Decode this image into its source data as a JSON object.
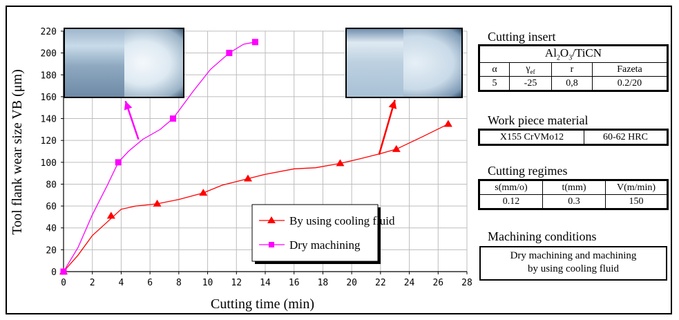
{
  "chart_data": {
    "type": "line",
    "xlabel": "Cutting time (min)",
    "ylabel": "Tool flank wear size VB (μm)",
    "xlim": [
      0,
      28
    ],
    "ylim": [
      0,
      220
    ],
    "x_ticks": [
      0,
      2,
      4,
      6,
      8,
      10,
      12,
      14,
      16,
      18,
      20,
      22,
      24,
      26,
      28
    ],
    "y_ticks": [
      0,
      20,
      40,
      60,
      80,
      100,
      120,
      140,
      160,
      180,
      200,
      220
    ],
    "grid": true,
    "legend_placement": "bottom-center",
    "series": [
      {
        "name": "By using cooling fluid",
        "color": "#ff0000",
        "marker": "triangle",
        "points": [
          [
            0,
            0
          ],
          [
            3.3,
            51
          ],
          [
            6.5,
            62
          ],
          [
            9.7,
            72
          ],
          [
            12.8,
            85
          ],
          [
            19.2,
            99
          ],
          [
            23.1,
            112
          ],
          [
            26.7,
            135
          ]
        ],
        "curve": [
          [
            0,
            0
          ],
          [
            1,
            15
          ],
          [
            2,
            33
          ],
          [
            3,
            45
          ],
          [
            4,
            57
          ],
          [
            5,
            60
          ],
          [
            6.5,
            62
          ],
          [
            8,
            66
          ],
          [
            9.7,
            72
          ],
          [
            11,
            79
          ],
          [
            12.8,
            85
          ],
          [
            14,
            89
          ],
          [
            16,
            94
          ],
          [
            17.5,
            95
          ],
          [
            19.2,
            99
          ],
          [
            20.5,
            103
          ],
          [
            22,
            108
          ],
          [
            23.1,
            112
          ],
          [
            25,
            124
          ],
          [
            26.7,
            135
          ]
        ]
      },
      {
        "name": "Dry machining",
        "color": "#ff00ff",
        "marker": "square",
        "points": [
          [
            0,
            0
          ],
          [
            3.8,
            100
          ],
          [
            7.6,
            140
          ],
          [
            11.5,
            200
          ],
          [
            13.3,
            210
          ]
        ],
        "curve": [
          [
            0,
            0
          ],
          [
            1,
            22
          ],
          [
            2,
            52
          ],
          [
            3,
            78
          ],
          [
            3.8,
            100
          ],
          [
            4.5,
            110
          ],
          [
            5.5,
            121
          ],
          [
            6.7,
            130
          ],
          [
            7.6,
            140
          ],
          [
            9,
            165
          ],
          [
            10.2,
            185
          ],
          [
            11.5,
            200
          ],
          [
            12.5,
            208
          ],
          [
            13.3,
            210
          ]
        ]
      }
    ],
    "annotations": [
      {
        "from": [
          5.2,
          121
        ],
        "to": [
          4.3,
          155
        ],
        "color": "#ff00ff"
      },
      {
        "from": [
          5.2,
          121
        ],
        "to": [
          4.2,
          155
        ],
        "color": "#ff00ff",
        "line_only": true,
        "target": [
          4.2,
          155
        ]
      },
      {
        "from": [
          21.9,
          107
        ],
        "to": [
          23.0,
          156
        ],
        "color": "#ff0000"
      }
    ]
  },
  "panels": {
    "insert": {
      "title": "Cutting insert",
      "material_main": "Al",
      "material_sub": "2",
      "material_mid": "O",
      "material_sub2": "3",
      "material_end": "/TiCN",
      "headers": [
        "α",
        "γ",
        "r",
        "Fazeta"
      ],
      "gamma_sub": "ef",
      "values": [
        "5",
        "-25",
        "0,8",
        "0.2/20"
      ]
    },
    "workpiece": {
      "title": "Work piece material",
      "values": [
        "X155 CrVMo12",
        "60-62 HRC"
      ]
    },
    "regimes": {
      "title": "Cutting regimes",
      "headers": [
        "s(mm/o)",
        "t(mm)",
        "V(m/min)"
      ],
      "values": [
        "0.12",
        "0.3",
        "150"
      ]
    },
    "conditions": {
      "title": "Machining conditions",
      "line1": "Dry machining and machining",
      "line2": "by using cooling fluid"
    }
  }
}
